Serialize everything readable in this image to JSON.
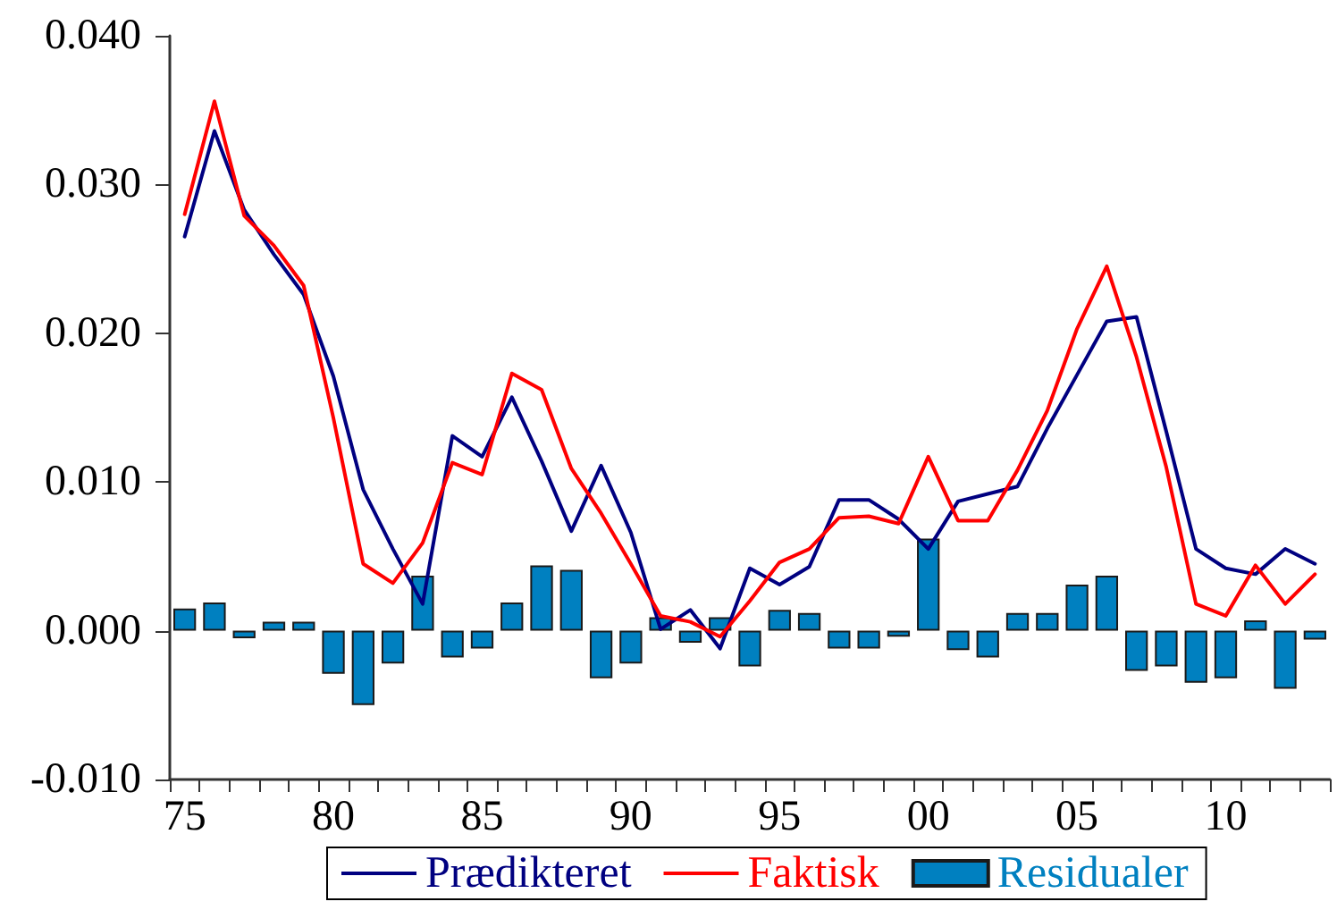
{
  "chart_data": {
    "type": "line",
    "categories": [
      "75",
      null,
      null,
      null,
      null,
      "80",
      null,
      null,
      null,
      null,
      "85",
      null,
      null,
      null,
      null,
      "90",
      null,
      null,
      null,
      null,
      "95",
      null,
      null,
      null,
      null,
      "00",
      null,
      null,
      null,
      null,
      "05",
      null,
      null,
      null,
      null,
      "10",
      null,
      null,
      null
    ],
    "series": [
      {
        "name": "Prædikteret",
        "color": "#000080",
        "values": [
          0.0265,
          0.0336,
          0.0283,
          0.0253,
          0.0226,
          0.0171,
          0.0095,
          0.0055,
          0.0018,
          0.0131,
          0.0117,
          0.0157,
          0.0114,
          0.0067,
          0.0111,
          0.0066,
          0.0001,
          0.0014,
          -0.0012,
          0.0042,
          0.0031,
          0.0043,
          0.0088,
          0.0088,
          0.0075,
          0.0055,
          0.0087,
          0.0092,
          0.0097,
          0.0136,
          0.0172,
          0.0208,
          0.0211,
          0.0134,
          0.0055,
          0.0042,
          0.0038,
          0.0055,
          0.0045
        ]
      },
      {
        "name": "Faktisk",
        "color": "#ff0000",
        "values": [
          0.028,
          0.0356,
          0.0279,
          0.0259,
          0.0232,
          0.0143,
          0.0045,
          0.0032,
          0.0059,
          0.0113,
          0.0105,
          0.0173,
          0.0162,
          0.0109,
          0.0079,
          0.0045,
          0.001,
          0.0006,
          -0.0004,
          0.002,
          0.0046,
          0.0055,
          0.0076,
          0.0077,
          0.0072,
          0.0117,
          0.0074,
          0.0074,
          0.0108,
          0.0148,
          0.0203,
          0.0245,
          0.0184,
          0.011,
          0.0018,
          0.001,
          0.0044,
          0.0018,
          0.0038
        ]
      },
      {
        "name": "Residualer",
        "type": "bar",
        "color": "#0080c0",
        "values": [
          0.0015,
          0.0019,
          -0.0005,
          0.0006,
          0.0006,
          -0.0029,
          -0.005,
          -0.0022,
          0.0037,
          -0.0018,
          -0.0012,
          0.0019,
          0.0044,
          0.0041,
          -0.0032,
          -0.0022,
          0.0009,
          -0.0008,
          0.0009,
          -0.0024,
          0.0014,
          0.0012,
          -0.0012,
          -0.0012,
          -0.0004,
          0.0062,
          -0.0013,
          -0.0018,
          0.0012,
          0.0012,
          0.0031,
          0.0037,
          -0.0027,
          -0.0024,
          -0.0035,
          -0.0032,
          0.0007,
          -0.0039,
          -0.0006
        ]
      }
    ],
    "ylim": [
      -0.01,
      0.04
    ],
    "yticks": [
      {
        "value": -0.01,
        "label": "-0.010"
      },
      {
        "value": 0,
        "label": "0.000"
      },
      {
        "value": 0.01,
        "label": "0.010"
      },
      {
        "value": 0.02,
        "label": "0.020"
      },
      {
        "value": 0.03,
        "label": "0.030"
      },
      {
        "value": 0.04,
        "label": "0.040"
      }
    ],
    "legend": "bottom",
    "grid": false,
    "marker": "none",
    "line_style": "solid"
  }
}
